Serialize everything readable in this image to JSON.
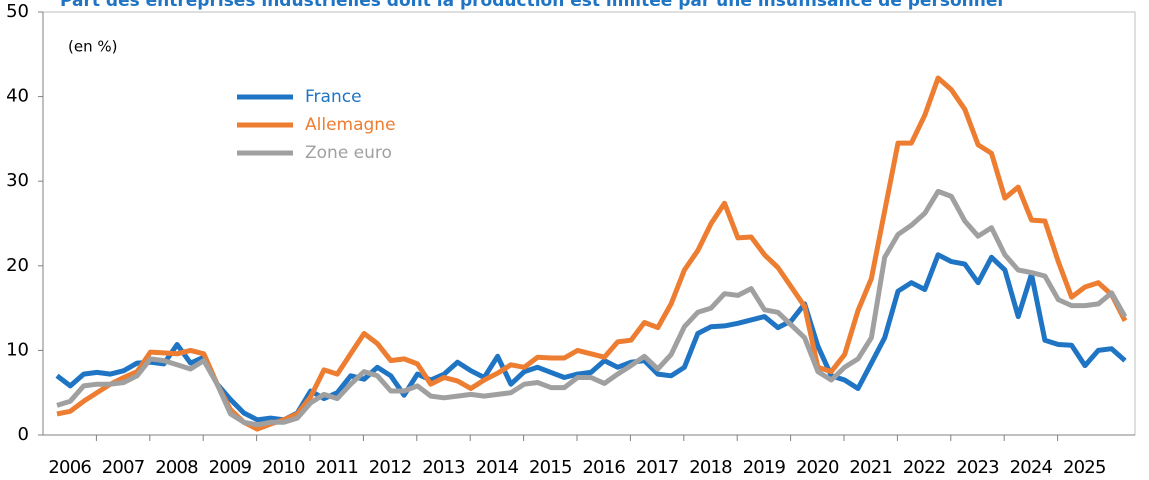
{
  "chart_data": {
    "type": "line",
    "title": "Part des entreprises industrielles dont la production est limitée par une insuffisance de personnel",
    "annotation": "(en %)",
    "categories": [
      "2006",
      null,
      null,
      null,
      "2007",
      null,
      null,
      null,
      "2008",
      null,
      null,
      null,
      "2009",
      null,
      null,
      null,
      "2010",
      null,
      null,
      null,
      "2011",
      null,
      null,
      null,
      "2012",
      null,
      null,
      null,
      "2013",
      null,
      null,
      null,
      "2014",
      null,
      null,
      null,
      "2015",
      null,
      null,
      null,
      "2016",
      null,
      null,
      null,
      "2017",
      null,
      null,
      null,
      "2018",
      null,
      null,
      null,
      "2019",
      null,
      null,
      null,
      "2020",
      null,
      null,
      null,
      "2021",
      null,
      null,
      null,
      "2022",
      null,
      null,
      null,
      "2023",
      null,
      null,
      null,
      "2024",
      null,
      null,
      null,
      "2025",
      null,
      null,
      null,
      null
    ],
    "series": [
      {
        "name": "France",
        "color": "#1f75c4",
        "values": [
          7.0,
          5.8,
          7.2,
          7.4,
          7.2,
          7.6,
          8.5,
          8.6,
          8.4,
          10.7,
          8.5,
          9.2,
          6.0,
          4.2,
          2.6,
          1.8,
          2.0,
          1.8,
          2.6,
          5.2,
          4.3,
          5.0,
          7.0,
          6.6,
          8.0,
          7.0,
          4.7,
          7.2,
          6.5,
          7.2,
          8.6,
          7.6,
          6.8,
          9.3,
          6.0,
          7.5,
          8.0,
          7.4,
          6.8,
          7.2,
          7.4,
          8.8,
          8.0,
          8.6,
          8.8,
          7.2,
          7.0,
          8.0,
          12.0,
          12.8,
          12.9,
          13.2,
          13.6,
          14.0,
          12.7,
          13.5,
          15.5,
          10.5,
          7.0,
          6.5,
          5.5,
          8.5,
          11.5,
          17.0,
          18.0,
          17.2,
          21.3,
          20.5,
          20.2,
          18.0,
          21.0,
          19.5,
          14.0,
          19.0,
          11.2,
          10.7,
          10.6,
          8.2,
          10.0,
          10.2,
          8.8
        ]
      },
      {
        "name": "Allemagne",
        "color": "#ed7d31",
        "values": [
          2.5,
          2.8,
          4.0,
          5.0,
          6.0,
          6.8,
          7.5,
          9.8,
          9.7,
          9.6,
          10.0,
          9.6,
          6.0,
          3.0,
          1.5,
          0.7,
          1.3,
          1.8,
          2.5,
          4.5,
          7.7,
          7.2,
          9.6,
          12.0,
          10.8,
          8.8,
          9.0,
          8.4,
          6.0,
          6.8,
          6.4,
          5.5,
          6.5,
          7.3,
          8.3,
          8.0,
          9.2,
          9.1,
          9.1,
          10.0,
          9.6,
          9.2,
          11.0,
          11.2,
          13.3,
          12.7,
          15.5,
          19.5,
          21.8,
          25.0,
          27.4,
          23.3,
          23.4,
          21.3,
          19.8,
          17.5,
          15.2,
          8.0,
          7.5,
          9.5,
          14.7,
          18.5,
          26.5,
          34.5,
          34.5,
          37.8,
          42.2,
          40.8,
          38.5,
          34.3,
          33.3,
          28.0,
          29.3,
          25.4,
          25.3,
          20.5,
          16.3,
          17.5,
          18.0,
          16.6,
          13.5
        ]
      },
      {
        "name": "Zone euro",
        "color": "#a0a0a0",
        "values": [
          3.5,
          4.0,
          5.8,
          6.0,
          6.0,
          6.2,
          7.0,
          9.0,
          8.8,
          8.3,
          7.8,
          8.8,
          6.0,
          2.5,
          1.5,
          1.2,
          1.5,
          1.5,
          2.0,
          3.8,
          4.8,
          4.3,
          6.0,
          7.5,
          7.0,
          5.2,
          5.2,
          5.8,
          4.6,
          4.4,
          4.6,
          4.8,
          4.6,
          4.8,
          5.0,
          6.0,
          6.2,
          5.6,
          5.6,
          6.8,
          6.8,
          6.1,
          7.2,
          8.2,
          9.3,
          7.8,
          9.5,
          12.8,
          14.5,
          15.0,
          16.7,
          16.5,
          17.3,
          14.8,
          14.5,
          13.0,
          11.5,
          7.5,
          6.5,
          8.0,
          9.0,
          11.5,
          21.0,
          23.7,
          24.8,
          26.2,
          28.8,
          28.2,
          25.3,
          23.5,
          24.5,
          21.3,
          19.5,
          19.2,
          18.8,
          16.0,
          15.3,
          15.3,
          15.5,
          16.8,
          14.0
        ]
      }
    ],
    "ylim": [
      0,
      50
    ],
    "yticks": [
      0,
      10,
      20,
      30,
      40,
      50
    ],
    "grid": false,
    "legend": "upper left"
  }
}
